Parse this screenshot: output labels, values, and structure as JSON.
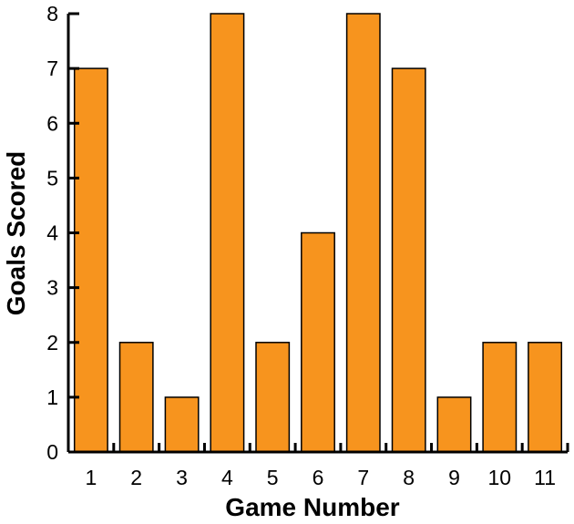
{
  "chart_data": {
    "type": "bar",
    "title": "",
    "xlabel": "Game Number",
    "ylabel": "Goals Scored",
    "categories": [
      "1",
      "2",
      "3",
      "4",
      "5",
      "6",
      "7",
      "8",
      "9",
      "10",
      "11"
    ],
    "values": [
      7,
      2,
      1,
      8,
      2,
      4,
      8,
      7,
      1,
      2,
      2
    ],
    "yticks": [
      "0",
      "1",
      "2",
      "3",
      "4",
      "5",
      "6",
      "7",
      "8"
    ],
    "ylim": [
      0,
      8
    ],
    "grid": false,
    "legend": null,
    "bar_color": "#F7941E",
    "edge_color": "#000000"
  }
}
